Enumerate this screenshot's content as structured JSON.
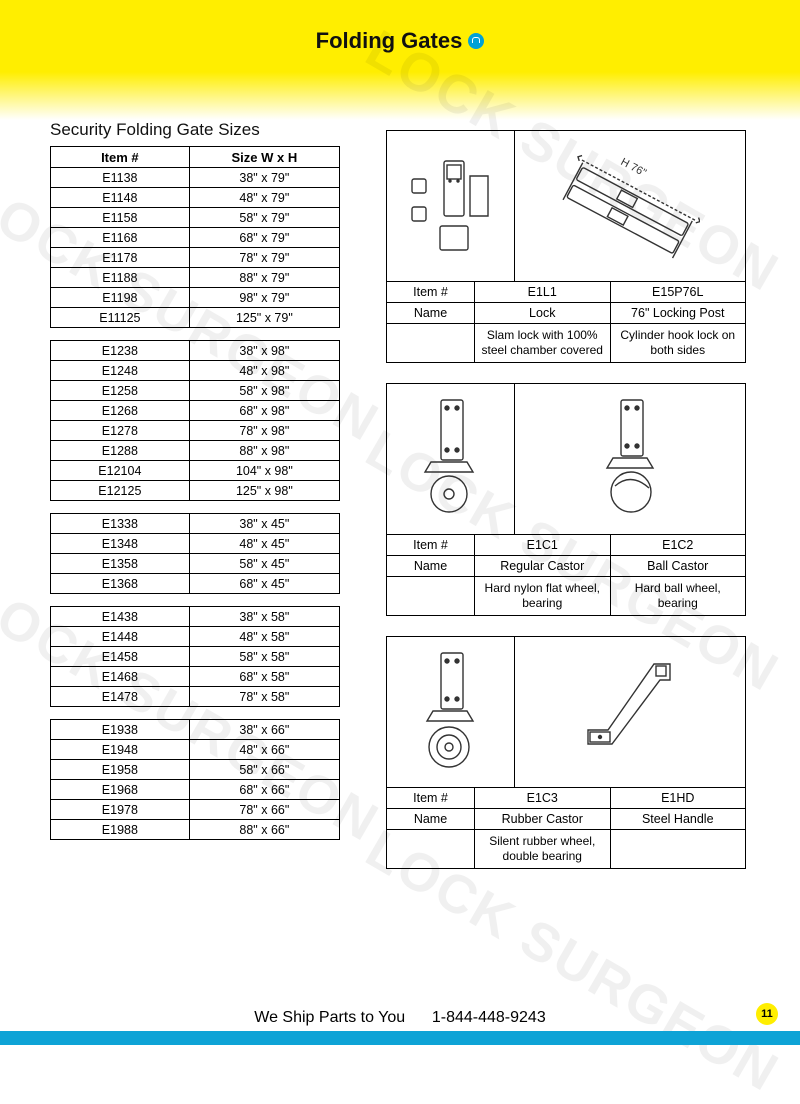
{
  "page": {
    "title": "Folding Gates",
    "subhead": "Security Folding Gate Sizes",
    "footer_ship": "We Ship Parts to You",
    "footer_phone": "1-844-448-9243",
    "page_number": "11",
    "watermark": "LOCK SURGEON",
    "colors": {
      "yellow": "#ffee00",
      "blue_bar": "#0ea3d6",
      "text": "#111111",
      "border": "#000000"
    }
  },
  "size_table": {
    "headers": [
      "Item #",
      "Size W x H"
    ],
    "groups": [
      [
        {
          "item": "E1138",
          "size": "38\" x 79\""
        },
        {
          "item": "E1148",
          "size": "48\" x 79\""
        },
        {
          "item": "E1158",
          "size": "58\" x 79\""
        },
        {
          "item": "E1168",
          "size": "68\" x 79\""
        },
        {
          "item": "E1178",
          "size": "78\" x 79\""
        },
        {
          "item": "E1188",
          "size": "88\" x 79\""
        },
        {
          "item": "E1198",
          "size": "98\" x 79\""
        },
        {
          "item": "E11125",
          "size": "125\" x 79\""
        }
      ],
      [
        {
          "item": "E1238",
          "size": "38\" x 98\""
        },
        {
          "item": "E1248",
          "size": "48\" x 98\""
        },
        {
          "item": "E1258",
          "size": "58\" x 98\""
        },
        {
          "item": "E1268",
          "size": "68\" x 98\""
        },
        {
          "item": "E1278",
          "size": "78\" x 98\""
        },
        {
          "item": "E1288",
          "size": "88\" x 98\""
        },
        {
          "item": "E12104",
          "size": "104\" x 98\""
        },
        {
          "item": "E12125",
          "size": "125\" x 98\""
        }
      ],
      [
        {
          "item": "E1338",
          "size": "38\" x 45\""
        },
        {
          "item": "E1348",
          "size": "48\" x 45\""
        },
        {
          "item": "E1358",
          "size": "58\" x 45\""
        },
        {
          "item": "E1368",
          "size": "68\" x 45\""
        }
      ],
      [
        {
          "item": "E1438",
          "size": "38\" x 58\""
        },
        {
          "item": "E1448",
          "size": "48\" x 58\""
        },
        {
          "item": "E1458",
          "size": "58\" x 58\""
        },
        {
          "item": "E1468",
          "size": "68\" x 58\""
        },
        {
          "item": "E1478",
          "size": "78\" x 58\""
        }
      ],
      [
        {
          "item": "E1938",
          "size": "38\" x 66\""
        },
        {
          "item": "E1948",
          "size": "48\" x 66\""
        },
        {
          "item": "E1958",
          "size": "58\" x 66\""
        },
        {
          "item": "E1968",
          "size": "68\" x 66\""
        },
        {
          "item": "E1978",
          "size": "78\" x 66\""
        },
        {
          "item": "E1988",
          "size": "88\" x 66\""
        }
      ]
    ]
  },
  "products": [
    {
      "label_item": "Item #",
      "label_name": "Name",
      "cols": [
        {
          "item": "E1L1",
          "name": "Lock",
          "desc": "Slam lock with 100% steel chamber covered",
          "icon": "lock-parts"
        },
        {
          "item": "E15P76L",
          "name": "76\" Locking Post",
          "desc": "Cylinder hook lock on both sides",
          "icon": "locking-post",
          "note": "H 76\""
        }
      ]
    },
    {
      "label_item": "Item #",
      "label_name": "Name",
      "cols": [
        {
          "item": "E1C1",
          "name": "Regular Castor",
          "desc": "Hard nylon flat wheel, bearing",
          "icon": "castor-regular"
        },
        {
          "item": "E1C2",
          "name": "Ball Castor",
          "desc": "Hard ball wheel, bearing",
          "icon": "castor-ball"
        }
      ]
    },
    {
      "label_item": "Item #",
      "label_name": "Name",
      "cols": [
        {
          "item": "E1C3",
          "name": "Rubber Castor",
          "desc": "Silent rubber wheel, double bearing",
          "icon": "castor-rubber"
        },
        {
          "item": "E1HD",
          "name": "Steel Handle",
          "desc": "",
          "icon": "steel-handle"
        }
      ]
    }
  ]
}
